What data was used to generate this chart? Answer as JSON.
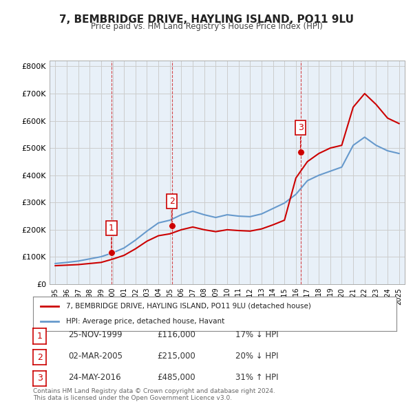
{
  "title": "7, BEMBRIDGE DRIVE, HAYLING ISLAND, PO11 9LU",
  "subtitle": "Price paid vs. HM Land Registry's House Price Index (HPI)",
  "background_color": "#ffffff",
  "grid_color": "#cccccc",
  "plot_bg_color": "#e8f0f8",
  "red_line_label": "7, BEMBRIDGE DRIVE, HAYLING ISLAND, PO11 9LU (detached house)",
  "blue_line_label": "HPI: Average price, detached house, Havant",
  "footer": "Contains HM Land Registry data © Crown copyright and database right 2024.\nThis data is licensed under the Open Government Licence v3.0.",
  "transactions": [
    {
      "num": 1,
      "date": "25-NOV-1999",
      "price": 116000,
      "pct": "17%",
      "dir": "↓"
    },
    {
      "num": 2,
      "date": "02-MAR-2005",
      "price": 215000,
      "pct": "20%",
      "dir": "↓"
    },
    {
      "num": 3,
      "date": "24-MAY-2016",
      "price": 485000,
      "pct": "31%",
      "dir": "↑"
    }
  ],
  "hpi_years": [
    1995,
    1996,
    1997,
    1998,
    1999,
    2000,
    2001,
    2002,
    2003,
    2004,
    2005,
    2006,
    2007,
    2008,
    2009,
    2010,
    2011,
    2012,
    2013,
    2014,
    2015,
    2016,
    2017,
    2018,
    2019,
    2020,
    2021,
    2022,
    2023,
    2024,
    2025
  ],
  "hpi_values": [
    76000,
    80000,
    85000,
    93000,
    101000,
    115000,
    133000,
    162000,
    195000,
    225000,
    235000,
    255000,
    268000,
    255000,
    245000,
    255000,
    250000,
    248000,
    258000,
    278000,
    298000,
    330000,
    380000,
    400000,
    415000,
    430000,
    510000,
    540000,
    510000,
    490000,
    480000
  ],
  "red_years": [
    1995,
    1996,
    1997,
    1998,
    1999,
    2000,
    2001,
    2002,
    2003,
    2004,
    2005,
    2006,
    2007,
    2008,
    2009,
    2010,
    2011,
    2012,
    2013,
    2014,
    2015,
    2016,
    2017,
    2018,
    2019,
    2020,
    2021,
    2022,
    2023,
    2024,
    2025
  ],
  "red_values": [
    68000,
    70000,
    72000,
    76000,
    80000,
    92000,
    106000,
    130000,
    158000,
    178000,
    185000,
    200000,
    210000,
    200000,
    193000,
    200000,
    197000,
    195000,
    203000,
    218000,
    235000,
    390000,
    450000,
    480000,
    500000,
    510000,
    650000,
    700000,
    660000,
    610000,
    590000
  ],
  "transaction_points": [
    {
      "year": 1999.9,
      "price": 116000
    },
    {
      "year": 2005.17,
      "price": 215000
    },
    {
      "year": 2016.4,
      "price": 485000
    }
  ],
  "ylim": [
    0,
    820000
  ],
  "xlim": [
    1994.5,
    2025.5
  ],
  "yticks": [
    0,
    100000,
    200000,
    300000,
    400000,
    500000,
    600000,
    700000,
    800000
  ],
  "xticks": [
    1995,
    1996,
    1997,
    1998,
    1999,
    2000,
    2001,
    2002,
    2003,
    2004,
    2005,
    2006,
    2007,
    2008,
    2009,
    2010,
    2011,
    2012,
    2013,
    2014,
    2015,
    2016,
    2017,
    2018,
    2019,
    2020,
    2021,
    2022,
    2023,
    2024,
    2025
  ],
  "transaction_marker_color": "#cc0000",
  "red_line_color": "#cc0000",
  "blue_line_color": "#6699cc",
  "marker_label_color": "#cc0000",
  "marker_bg": "#ffffff",
  "number_box_color": "#cc0000"
}
